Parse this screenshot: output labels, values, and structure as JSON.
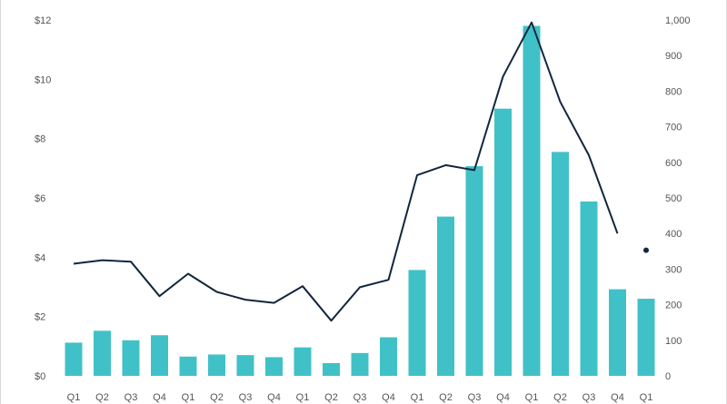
{
  "chart_data": {
    "type": "bar+line",
    "categories": [
      "Q1",
      "Q2",
      "Q3",
      "Q4",
      "Q1",
      "Q2",
      "Q3",
      "Q4",
      "Q1",
      "Q2",
      "Q3",
      "Q4",
      "Q1",
      "Q2",
      "Q3",
      "Q4",
      "Q1",
      "Q2",
      "Q3",
      "Q4",
      "Q1"
    ],
    "y_left": {
      "ticks": [
        "$0",
        "$2",
        "$4",
        "$6",
        "$8",
        "$10",
        "$12"
      ],
      "range": [
        0,
        12
      ]
    },
    "y_right": {
      "ticks": [
        "0",
        "100",
        "200",
        "300",
        "400",
        "500",
        "600",
        "700",
        "800",
        "900",
        "1,000"
      ],
      "range": [
        0,
        1000
      ]
    },
    "series": [
      {
        "type": "bar",
        "axis": "left",
        "values": [
          1.12,
          1.52,
          1.2,
          1.37,
          0.65,
          0.72,
          0.7,
          0.63,
          0.96,
          0.43,
          0.77,
          1.3,
          3.57,
          5.37,
          7.07,
          9.01,
          11.8,
          7.55,
          5.88,
          2.92,
          2.6
        ]
      },
      {
        "type": "line",
        "axis": "right",
        "values": [
          315,
          325,
          321,
          224,
          287,
          236,
          214,
          205,
          252,
          155,
          249,
          270,
          564,
          592,
          578,
          841,
          993,
          770,
          620,
          400,
          null
        ],
        "points": [
          {
            "index": 20,
            "value": 353
          }
        ]
      }
    ],
    "colors": {
      "bar": "#40c1c7",
      "line": "#13263e"
    },
    "grid": false,
    "legend": "none"
  }
}
